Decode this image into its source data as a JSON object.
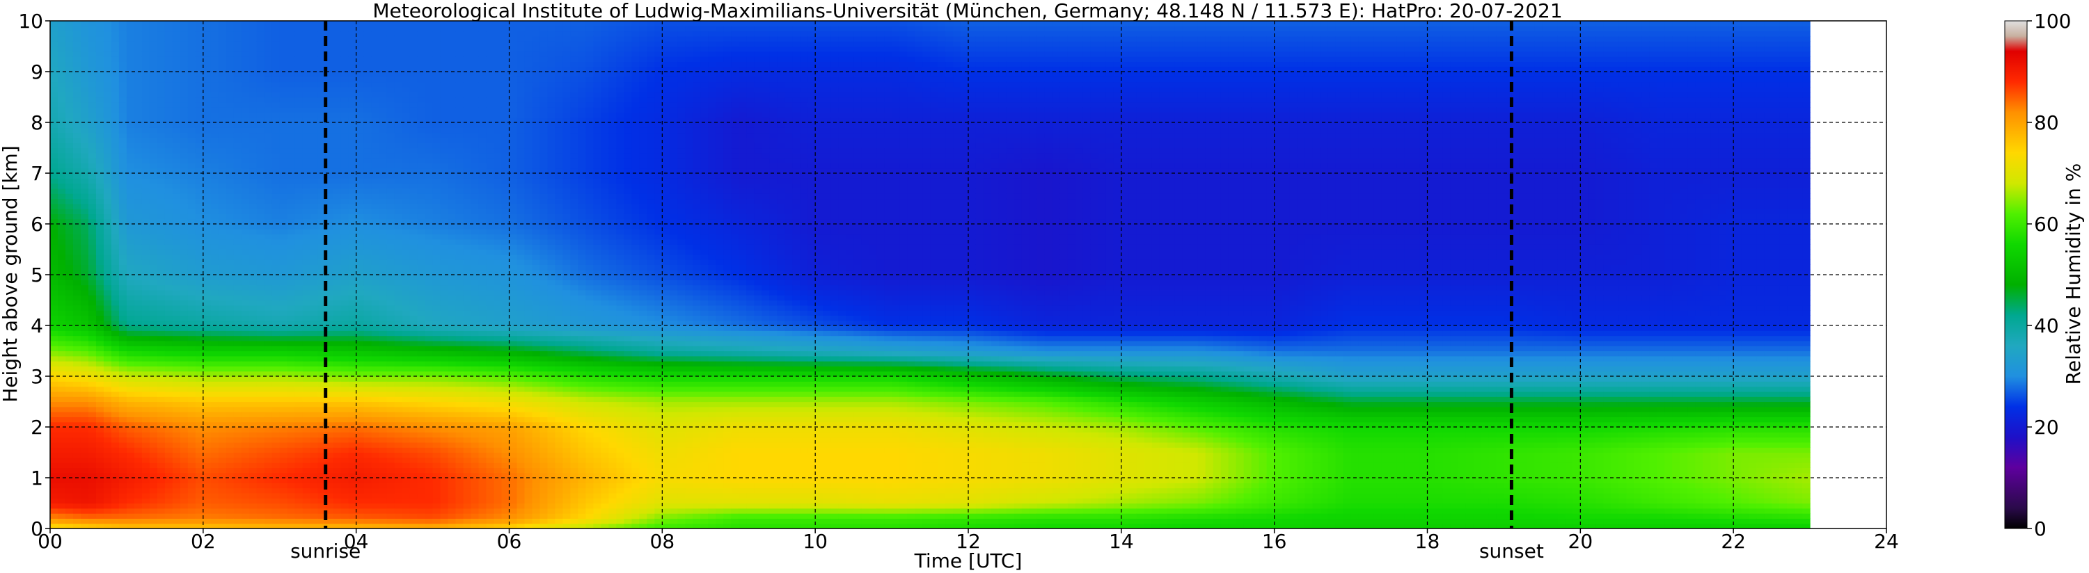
{
  "chart_data": {
    "type": "heatmap",
    "title": "Meteorological Institute of Ludwig-Maximilians-Universität (München, Germany; 48.148 N / 11.573 E):    HatPro: 20-07-2021",
    "xlabel": "Time [UTC]",
    "ylabel": "Height above ground [km]",
    "xlim": [
      0,
      24
    ],
    "ylim": [
      0,
      10
    ],
    "x_ticks": [
      "00",
      "02",
      "04",
      "06",
      "08",
      "10",
      "12",
      "14",
      "16",
      "18",
      "20",
      "22",
      "24"
    ],
    "y_ticks": [
      "0",
      "1",
      "2",
      "3",
      "4",
      "5",
      "6",
      "7",
      "8",
      "9",
      "10"
    ],
    "grid": true,
    "data_end_hour": 23.0,
    "colorbar": {
      "label": "Relative Humidity in %",
      "range": [
        0,
        100
      ],
      "ticks": [
        "0",
        "20",
        "40",
        "60",
        "80",
        "100"
      ],
      "stops": [
        {
          "value": 0,
          "color": "#000000"
        },
        {
          "value": 4,
          "color": "#2a0a4a"
        },
        {
          "value": 12,
          "color": "#5e009e"
        },
        {
          "value": 18,
          "color": "#1e10c8"
        },
        {
          "value": 24,
          "color": "#0030e6"
        },
        {
          "value": 30,
          "color": "#2090e0"
        },
        {
          "value": 36,
          "color": "#20a8c0"
        },
        {
          "value": 42,
          "color": "#00a890"
        },
        {
          "value": 48,
          "color": "#00b000"
        },
        {
          "value": 56,
          "color": "#10d800"
        },
        {
          "value": 62,
          "color": "#50f000"
        },
        {
          "value": 68,
          "color": "#d0e800"
        },
        {
          "value": 74,
          "color": "#ffd800"
        },
        {
          "value": 82,
          "color": "#ff9000"
        },
        {
          "value": 88,
          "color": "#ff2a00"
        },
        {
          "value": 94,
          "color": "#e00000"
        },
        {
          "value": 97,
          "color": "#c8b0a0"
        },
        {
          "value": 100,
          "color": "#e0e0e0"
        }
      ]
    },
    "events": [
      {
        "name": "sunrise",
        "hour": 3.6
      },
      {
        "name": "sunset",
        "hour": 19.1
      }
    ],
    "profile_heights_km": [
      0,
      0.2,
      0.5,
      1.0,
      1.5,
      2.0,
      2.5,
      3.0,
      3.5,
      4.0,
      5.0,
      6.0,
      7.0,
      8.0,
      9.0,
      10.0
    ],
    "profiles": [
      {
        "hour": 0.0,
        "rh": [
          72,
          82,
          90,
          92,
          90,
          88,
          82,
          74,
          64,
          55,
          50,
          48,
          42,
          38,
          36,
          34
        ]
      },
      {
        "hour": 0.5,
        "rh": [
          74,
          84,
          91,
          92,
          90,
          88,
          82,
          72,
          62,
          52,
          46,
          44,
          38,
          34,
          32,
          31
        ]
      },
      {
        "hour": 1.0,
        "rh": [
          76,
          84,
          88,
          90,
          88,
          85,
          78,
          68,
          56,
          42,
          36,
          32,
          30,
          29,
          29,
          29
        ]
      },
      {
        "hour": 2.0,
        "rh": [
          76,
          83,
          85,
          86,
          84,
          82,
          76,
          66,
          54,
          40,
          33,
          30,
          29,
          28,
          28,
          28
        ]
      },
      {
        "hour": 3.0,
        "rh": [
          77,
          84,
          86,
          88,
          86,
          83,
          76,
          66,
          54,
          38,
          32,
          29,
          28,
          28,
          27,
          27
        ]
      },
      {
        "hour": 4.0,
        "rh": [
          77,
          85,
          88,
          90,
          88,
          84,
          76,
          64,
          52,
          40,
          34,
          30,
          28,
          28,
          27,
          27
        ]
      },
      {
        "hour": 5.0,
        "rh": [
          78,
          86,
          88,
          88,
          86,
          82,
          74,
          64,
          50,
          36,
          32,
          29,
          28,
          27,
          27,
          27
        ]
      },
      {
        "hour": 6.0,
        "rh": [
          74,
          82,
          84,
          84,
          82,
          80,
          72,
          62,
          48,
          34,
          31,
          28,
          27,
          27,
          27,
          27
        ]
      },
      {
        "hour": 7.0,
        "rh": [
          66,
          74,
          76,
          78,
          76,
          74,
          68,
          58,
          44,
          32,
          28,
          26,
          25,
          25,
          26,
          27
        ]
      },
      {
        "hour": 8.0,
        "rh": [
          60,
          64,
          70,
          73,
          72,
          70,
          66,
          56,
          40,
          30,
          26,
          24,
          23,
          23,
          24,
          26
        ]
      },
      {
        "hour": 9.0,
        "rh": [
          58,
          60,
          70,
          74,
          74,
          72,
          66,
          56,
          38,
          28,
          24,
          22,
          20,
          20,
          23,
          26
        ]
      },
      {
        "hour": 10.0,
        "rh": [
          58,
          60,
          70,
          74,
          74,
          72,
          66,
          56,
          36,
          26,
          21,
          20,
          20,
          21,
          23,
          26
        ]
      },
      {
        "hour": 11.0,
        "rh": [
          58,
          60,
          71,
          74,
          74,
          72,
          66,
          56,
          34,
          24,
          20,
          20,
          20,
          21,
          23,
          26
        ]
      },
      {
        "hour": 12.0,
        "rh": [
          57,
          59,
          70,
          73,
          73,
          70,
          64,
          52,
          32,
          24,
          20,
          20,
          20,
          21,
          24,
          27
        ]
      },
      {
        "hour": 13.0,
        "rh": [
          56,
          58,
          68,
          72,
          72,
          68,
          62,
          48,
          30,
          22,
          19,
          19,
          19,
          21,
          24,
          27
        ]
      },
      {
        "hour": 14.0,
        "rh": [
          56,
          58,
          66,
          70,
          70,
          66,
          58,
          44,
          30,
          22,
          20,
          20,
          20,
          21,
          24,
          27
        ]
      },
      {
        "hour": 15.0,
        "rh": [
          55,
          57,
          64,
          68,
          68,
          62,
          54,
          42,
          30,
          22,
          20,
          20,
          20,
          21,
          24,
          27
        ]
      },
      {
        "hour": 16.0,
        "rh": [
          55,
          56,
          60,
          62,
          62,
          58,
          50,
          38,
          28,
          22,
          20,
          20,
          20,
          21,
          24,
          27
        ]
      },
      {
        "hour": 17.0,
        "rh": [
          54,
          55,
          57,
          58,
          58,
          56,
          46,
          34,
          28,
          24,
          21,
          20,
          20,
          21,
          24,
          27
        ]
      },
      {
        "hour": 18.0,
        "rh": [
          54,
          55,
          57,
          58,
          58,
          56,
          46,
          34,
          28,
          24,
          21,
          20,
          20,
          21,
          24,
          27
        ]
      },
      {
        "hour": 19.0,
        "rh": [
          54,
          55,
          57,
          59,
          59,
          56,
          46,
          34,
          28,
          24,
          21,
          20,
          20,
          21,
          24,
          27
        ]
      },
      {
        "hour": 20.0,
        "rh": [
          54,
          56,
          58,
          60,
          60,
          56,
          46,
          34,
          28,
          23,
          21,
          20,
          20,
          21,
          24,
          27
        ]
      },
      {
        "hour": 21.0,
        "rh": [
          54,
          56,
          60,
          62,
          62,
          57,
          46,
          34,
          28,
          23,
          21,
          21,
          21,
          22,
          24,
          27
        ]
      },
      {
        "hour": 22.0,
        "rh": [
          54,
          57,
          62,
          64,
          64,
          58,
          46,
          34,
          28,
          23,
          22,
          22,
          21,
          22,
          24,
          27
        ]
      },
      {
        "hour": 23.0,
        "rh": [
          54,
          58,
          64,
          66,
          64,
          58,
          46,
          34,
          28,
          23,
          22,
          22,
          21,
          22,
          24,
          27
        ]
      }
    ]
  }
}
